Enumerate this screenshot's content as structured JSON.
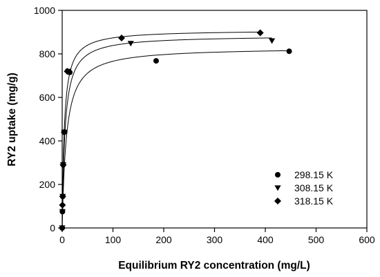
{
  "chart_data": {
    "type": "scatter",
    "title": "",
    "xlabel": "Equilibrium RY2 concentration (mg/L)",
    "ylabel": "RY2 uptake (mg/g)",
    "xlim": [
      0,
      600
    ],
    "ylim": [
      0,
      1000
    ],
    "xticks": [
      "0",
      "100",
      "200",
      "300",
      "400",
      "500",
      "600"
    ],
    "yticks": [
      "0",
      "200",
      "400",
      "600",
      "800",
      "1000"
    ],
    "grid": false,
    "legend_position": "bottom-right",
    "series": [
      {
        "name": "298.15 K",
        "marker": "circle",
        "color": "#000000",
        "x": [
          0,
          0.5,
          1,
          2,
          4,
          15,
          185,
          447
        ],
        "y": [
          0,
          75,
          145,
          290,
          440,
          715,
          768,
          812
        ],
        "fit": {
          "qmax": 830,
          "K": 0.12
        }
      },
      {
        "name": "308.15 K",
        "marker": "triangle-down",
        "color": "#000000",
        "x": [
          0,
          0.5,
          1,
          2,
          4,
          12,
          135,
          413
        ],
        "y": [
          0,
          75,
          145,
          290,
          440,
          720,
          848,
          860
        ],
        "fit": {
          "qmax": 885,
          "K": 0.18
        }
      },
      {
        "name": "318.15 K",
        "marker": "diamond",
        "color": "#000000",
        "x": [
          0,
          0.5,
          1,
          2,
          4,
          10,
          117,
          390
        ],
        "y": [
          0,
          105,
          145,
          290,
          440,
          720,
          873,
          897
        ],
        "fit": {
          "qmax": 910,
          "K": 0.24
        }
      }
    ]
  }
}
